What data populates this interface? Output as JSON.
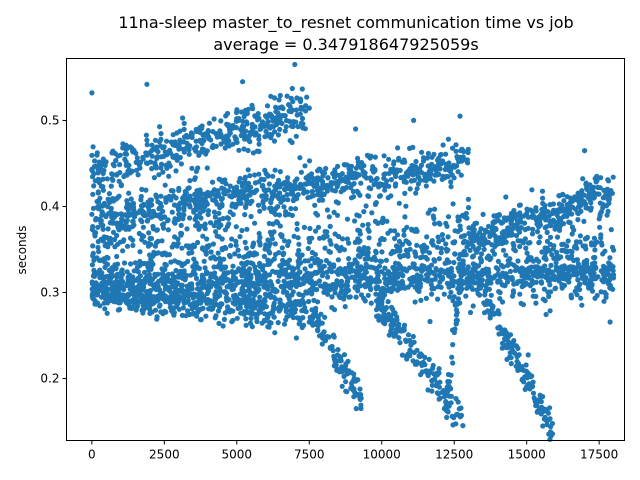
{
  "chart_data": {
    "type": "scatter",
    "title": "11na-sleep master_to_resnet communication time vs job",
    "subtitle": "average = 0.347918647925059s",
    "xlabel": "",
    "ylabel": "seconds",
    "xlim": [
      -875,
      18375
    ],
    "ylim": [
      0.128,
      0.572
    ],
    "xticks": [
      0,
      2500,
      5000,
      7500,
      10000,
      12500,
      15000,
      17500
    ],
    "yticks": [
      0.2,
      0.3,
      0.4,
      0.5
    ],
    "ytick_labels": [
      "0.2",
      "0.3",
      "0.4",
      "0.5"
    ],
    "marker_color": "#1f77b4",
    "grid": false,
    "n_jobs": 18000,
    "bands": [
      {
        "x": [
          0,
          7500
        ],
        "y": [
          0.44,
          0.51
        ],
        "spread": 0.012
      },
      {
        "x": [
          0,
          13000
        ],
        "y": [
          0.39,
          0.45
        ],
        "spread": 0.012
      },
      {
        "x": [
          13000,
          18000
        ],
        "y": [
          0.36,
          0.42
        ],
        "spread": 0.012
      },
      {
        "x": [
          0,
          18000
        ],
        "y": [
          0.35,
          0.345
        ],
        "spread": 0.03
      },
      {
        "x": [
          0,
          18000
        ],
        "y": [
          0.31,
          0.32
        ],
        "spread": 0.012
      },
      {
        "x": [
          0,
          7500
        ],
        "y": [
          0.3,
          0.275
        ],
        "spread": 0.01
      },
      {
        "x": [
          7500,
          9300
        ],
        "y": [
          0.28,
          0.175
        ],
        "spread": 0.01
      },
      {
        "x": [
          9800,
          12800
        ],
        "y": [
          0.29,
          0.155
        ],
        "spread": 0.01
      },
      {
        "x": [
          13500,
          15900
        ],
        "y": [
          0.3,
          0.14
        ],
        "spread": 0.01
      },
      {
        "x": [
          12200,
          13000
        ],
        "y": [
          0.16,
          0.4
        ],
        "spread": 0.01
      }
    ],
    "outliers": [
      {
        "x": 0,
        "y": 0.532
      },
      {
        "x": 1900,
        "y": 0.542
      },
      {
        "x": 5200,
        "y": 0.545
      },
      {
        "x": 7000,
        "y": 0.565
      },
      {
        "x": 11100,
        "y": 0.5
      },
      {
        "x": 12700,
        "y": 0.505
      },
      {
        "x": 9100,
        "y": 0.49
      },
      {
        "x": 17000,
        "y": 0.465
      }
    ]
  }
}
